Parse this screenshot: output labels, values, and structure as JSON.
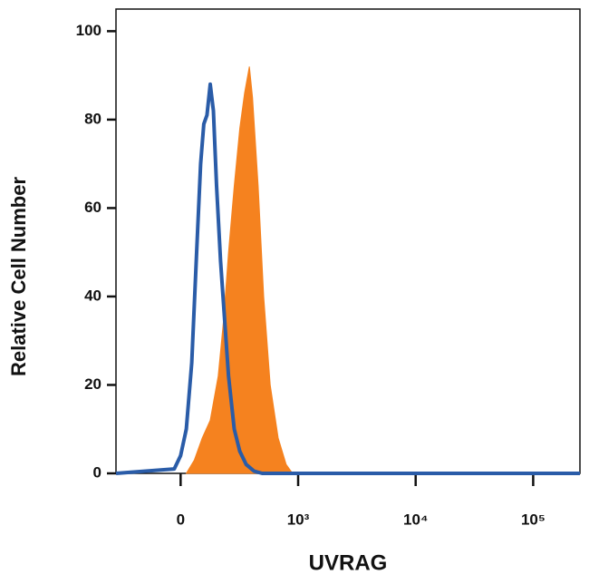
{
  "chart_data": {
    "type": "histogram-overlay",
    "xlabel": "UVRAG",
    "ylabel": "Relative Cell Number",
    "xscale": "biexponential",
    "xlim": [
      -550,
      250000
    ],
    "xticks": [
      0,
      {
        "value": 1000,
        "label": "10³"
      },
      {
        "value": 10000,
        "label": "10⁴"
      },
      {
        "value": 100000,
        "label": "10⁵"
      }
    ],
    "ylim": [
      0,
      105
    ],
    "yticks": [
      0,
      20,
      40,
      60,
      80,
      100
    ],
    "series": [
      {
        "color": "#f5821f",
        "filled": true,
        "x": [
          48,
          116,
          184,
          252,
          320,
          367,
          408,
          456,
          503,
          544,
          585,
          612,
          660,
          707,
          762,
          830,
          898,
          952
        ],
        "values": [
          0,
          3,
          8,
          12,
          22,
          35,
          50,
          65,
          78,
          86,
          92,
          85,
          65,
          40,
          20,
          8,
          2,
          0
        ]
      },
      {
        "color": "#2a5ca8",
        "filled": false,
        "x": [
          -550,
          -54,
          0,
          48,
          95,
          136,
          170,
          197,
          224,
          252,
          279,
          306,
          340,
          374,
          408,
          456,
          503,
          558,
          626,
          694,
          250000
        ],
        "values": [
          0,
          1,
          4,
          10,
          25,
          50,
          70,
          79,
          81,
          88,
          82,
          65,
          48,
          35,
          22,
          10,
          5,
          2,
          0.5,
          0,
          0
        ]
      }
    ]
  }
}
